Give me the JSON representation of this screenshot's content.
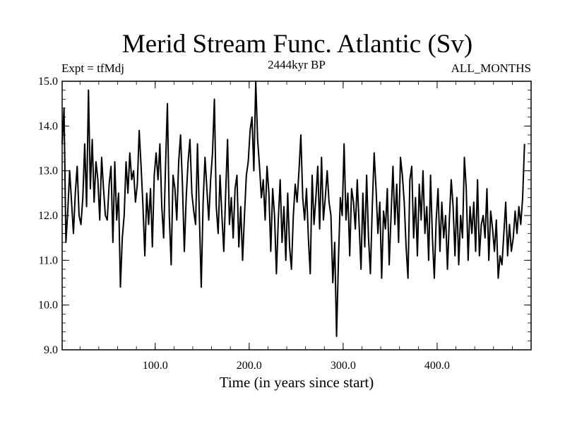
{
  "chart_data": {
    "type": "line",
    "title": "Merid Stream Func. Atlantic (Sv)",
    "subtitle_left": "Expt = tfMdj",
    "subtitle_center": "2444kyr BP",
    "subtitle_right": "ALL_MONTHS",
    "xlabel": "Time (in years since start)",
    "ylabel": "",
    "xlim": [
      1,
      500
    ],
    "ylim": [
      9.0,
      15.0
    ],
    "xticks": [
      100,
      200,
      300,
      400
    ],
    "xtick_labels": [
      "100.0",
      "200.0",
      "300.0",
      "400.0"
    ],
    "yticks": [
      9,
      10,
      11,
      12,
      13,
      14,
      15
    ],
    "ytick_labels": [
      "9.0",
      "10.0",
      "11.0",
      "12.0",
      "13.0",
      "14.0",
      "15.0"
    ],
    "series": [
      {
        "name": "Merid Stream Func. Atlantic",
        "x_start": 1,
        "x_step": 2,
        "values": [
          13.6,
          14.4,
          11.4,
          12.1,
          13.0,
          12.3,
          11.6,
          12.5,
          13.1,
          12.0,
          11.8,
          12.4,
          13.6,
          12.2,
          14.8,
          12.6,
          13.7,
          12.3,
          13.2,
          12.8,
          11.9,
          13.3,
          12.6,
          12.0,
          11.9,
          12.7,
          13.1,
          11.4,
          13.2,
          11.9,
          12.5,
          10.4,
          11.5,
          12.0,
          13.2,
          12.5,
          13.4,
          12.8,
          13.0,
          12.3,
          12.7,
          13.9,
          13.1,
          12.2,
          11.1,
          12.5,
          11.8,
          12.6,
          11.3,
          12.9,
          13.4,
          12.8,
          13.6,
          12.2,
          11.5,
          13.1,
          14.5,
          12.0,
          10.9,
          12.9,
          12.6,
          11.9,
          13.2,
          13.8,
          12.7,
          11.2,
          12.4,
          13.2,
          13.7,
          12.5,
          12.1,
          11.8,
          13.6,
          12.0,
          10.4,
          12.3,
          13.3,
          12.6,
          11.9,
          12.8,
          13.4,
          14.6,
          12.2,
          11.6,
          12.9,
          12.0,
          11.2,
          12.5,
          13.7,
          11.8,
          12.4,
          11.5,
          12.6,
          12.9,
          11.3,
          12.2,
          11.0,
          12.0,
          12.9,
          13.2,
          13.9,
          14.2,
          13.0,
          15.0,
          13.7,
          13.1,
          12.4,
          12.8,
          11.9,
          13.1,
          12.5,
          11.2,
          12.6,
          12.0,
          10.7,
          11.9,
          12.8,
          11.4,
          12.2,
          11.0,
          12.5,
          11.3,
          10.8,
          12.0,
          12.7,
          12.3,
          13.0,
          13.8,
          12.4,
          11.9,
          12.6,
          11.5,
          10.7,
          12.9,
          11.8,
          12.4,
          13.1,
          11.7,
          13.3,
          11.9,
          12.4,
          13.0,
          12.3,
          12.0,
          10.5,
          11.4,
          9.3,
          11.0,
          12.4,
          12.0,
          13.6,
          11.9,
          12.5,
          11.1,
          12.6,
          12.3,
          11.7,
          12.8,
          11.8,
          10.8,
          12.5,
          11.3,
          12.9,
          11.5,
          10.7,
          12.2,
          13.4,
          12.6,
          11.6,
          12.3,
          10.6,
          12.1,
          11.7,
          12.6,
          10.9,
          12.0,
          13.1,
          11.8,
          12.7,
          11.4,
          13.3,
          12.9,
          12.3,
          11.3,
          10.6,
          12.8,
          13.1,
          11.5,
          12.4,
          11.1,
          12.7,
          11.9,
          13.0,
          11.6,
          12.2,
          11.0,
          12.9,
          11.5,
          10.6,
          11.9,
          12.6,
          11.2,
          12.3,
          11.5,
          12.0,
          10.8,
          11.9,
          12.8,
          12.2,
          11.1,
          12.4,
          10.9,
          12.0,
          11.5,
          13.3,
          12.6,
          11.0,
          12.2,
          11.6,
          12.3,
          11.2,
          12.8,
          11.1,
          11.8,
          12.0,
          11.5,
          12.6,
          11.0,
          12.1,
          11.7,
          11.2,
          11.9,
          10.6,
          11.1,
          10.9,
          11.6,
          12.3,
          11.1,
          11.8,
          11.2,
          11.5,
          12.1,
          11.6,
          12.2,
          11.8,
          12.4,
          13.6
        ]
      }
    ]
  }
}
